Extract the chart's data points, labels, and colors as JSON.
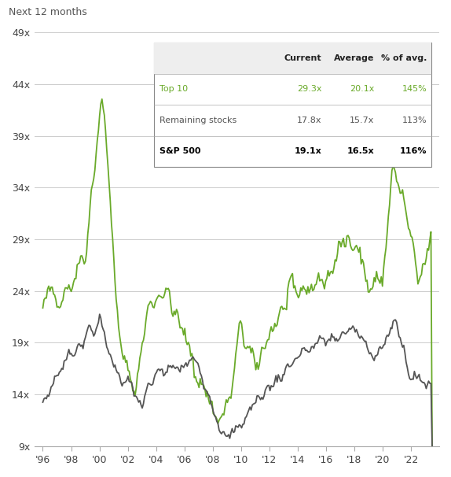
{
  "title": "Next 12 months",
  "ylabel_ticks": [
    "9x",
    "14x",
    "19x",
    "24x",
    "29x",
    "34x",
    "39x",
    "44x",
    "49x"
  ],
  "ytick_vals": [
    9,
    14,
    19,
    24,
    29,
    34,
    39,
    44,
    49
  ],
  "xlabels": [
    "'96",
    "'98",
    "'00",
    "'02",
    "'04",
    "'06",
    "'08",
    "'10",
    "'12",
    "'14",
    "'16",
    "'18",
    "'20",
    "'22"
  ],
  "color_top10": "#6aaa2a",
  "color_remaining": "#555555",
  "table_headers": [
    "",
    "Current",
    "Average",
    "% of avg."
  ],
  "table_rows": [
    [
      "Top 10",
      "29.3x",
      "20.1x",
      "145%"
    ],
    [
      "Remaining stocks",
      "17.8x",
      "15.7x",
      "113%"
    ],
    [
      "S&P 500",
      "19.1x",
      "16.5x",
      "116%"
    ]
  ],
  "table_row_colors": [
    "#6aaa2a",
    "#555555",
    "#000000"
  ],
  "table_bold_rows": [
    2
  ],
  "bg_color": "#ffffff"
}
